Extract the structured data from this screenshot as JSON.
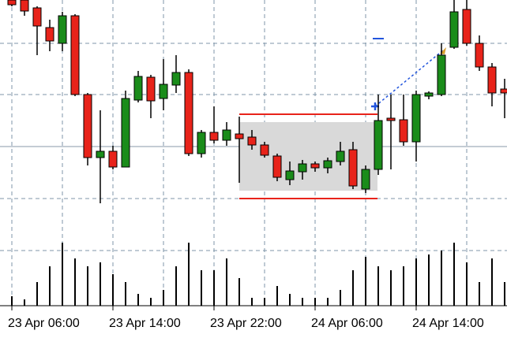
{
  "chart_data": {
    "type": "candlestick",
    "categories": [
      "23 Apr 06:00",
      null,
      null,
      null,
      null,
      null,
      null,
      null,
      "23 Apr 14:00",
      null,
      null,
      null,
      null,
      null,
      null,
      null,
      "23 Apr 22:00",
      null,
      null,
      null,
      null,
      null,
      null,
      null,
      "24 Apr 06:00",
      null,
      null,
      null,
      null,
      null,
      null,
      null,
      "24 Apr 14:00",
      null,
      null,
      null,
      null,
      null,
      null,
      null
    ],
    "open": [
      300,
      300,
      290,
      265,
      245,
      280,
      180,
      100,
      108,
      88,
      173,
      202,
      175,
      192,
      208,
      105,
      132,
      122,
      130,
      126,
      116,
      102,
      72,
      82,
      92,
      87,
      95,
      110,
      60,
      85,
      150,
      148,
      120,
      178,
      180,
      240,
      288,
      245,
      215,
      187
    ],
    "high": [
      300,
      300,
      292,
      275,
      285,
      282,
      182,
      160,
      115,
      185,
      210,
      205,
      225,
      230,
      212,
      135,
      165,
      145,
      152,
      135,
      120,
      105,
      95,
      97,
      95,
      100,
      120,
      120,
      90,
      180,
      180,
      180,
      185,
      184,
      245,
      300,
      300,
      255,
      220,
      200
    ],
    "low": [
      292,
      280,
      230,
      235,
      235,
      178,
      90,
      42,
      85,
      88,
      170,
      150,
      160,
      182,
      102,
      100,
      118,
      115,
      68,
      110,
      100,
      70,
      65,
      72,
      82,
      80,
      90,
      60,
      55,
      78,
      85,
      115,
      95,
      174,
      178,
      238,
      242,
      210,
      165,
      150
    ],
    "close": [
      294,
      286,
      267,
      248,
      280,
      180,
      100,
      108,
      88,
      175,
      203,
      172,
      193,
      208,
      105,
      132,
      122,
      135,
      124,
      116,
      103,
      75,
      83,
      92,
      87,
      96,
      108,
      64,
      85,
      147,
      147,
      120,
      180,
      182,
      230,
      285,
      245,
      215,
      182,
      182
    ],
    "volumes": [
      12,
      8,
      30,
      50,
      80,
      60,
      50,
      55,
      40,
      30,
      15,
      10,
      20,
      50,
      80,
      45,
      45,
      60,
      35,
      10,
      10,
      25,
      15,
      10,
      10,
      10,
      20,
      45,
      62,
      50,
      45,
      50,
      60,
      65,
      70,
      80,
      55,
      30,
      60,
      30
    ],
    "up_color": "#1a8c1a",
    "down_color": "#e8231a",
    "ylim": [
      0,
      300
    ],
    "volume_lim": [
      0,
      100
    ]
  }
}
